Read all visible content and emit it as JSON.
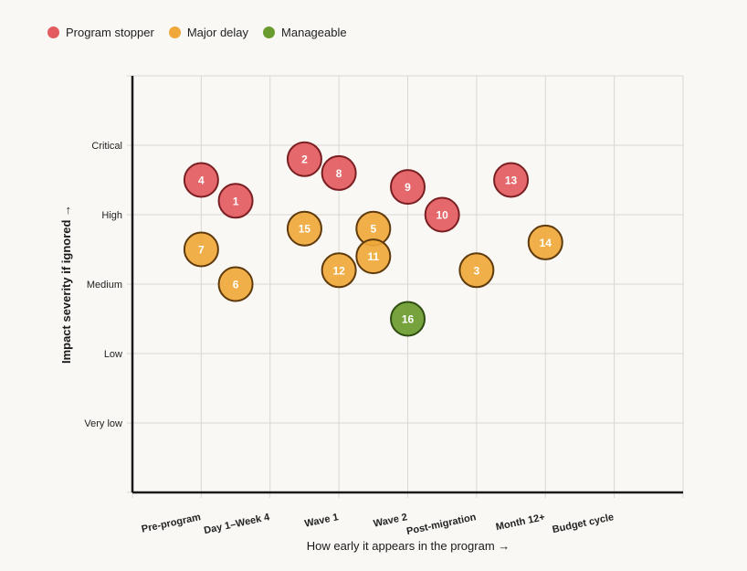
{
  "legend": [
    {
      "key": "stopper",
      "label": "Program stopper",
      "color": "#e35b5f"
    },
    {
      "key": "major",
      "label": "Major delay",
      "color": "#f0a83a"
    },
    {
      "key": "manageable",
      "label": "Manageable",
      "color": "#6a9b2e"
    }
  ],
  "chart_data": {
    "type": "scatter",
    "title": "",
    "xlabel": "How early it appears in the program →",
    "ylabel": "Impact severity if ignored →",
    "x_categories": [
      "Pre-program",
      "Day 1–Week 4",
      "Wave 1",
      "Wave 2",
      "Post-migration",
      "Month 12+",
      "Budget cycle"
    ],
    "y_categories": [
      "Very low",
      "Low",
      "Medium",
      "High",
      "Critical"
    ],
    "xlim": [
      -1,
      7
    ],
    "ylim": [
      0,
      6
    ],
    "grid": true,
    "legend_position": "top-left",
    "series": [
      {
        "name": "Program stopper",
        "color": "#e35b5f",
        "stroke": "#7a1f22",
        "points": [
          {
            "id": "1",
            "x": 0.5,
            "y": 4.2
          },
          {
            "id": "2",
            "x": 1.5,
            "y": 4.8
          },
          {
            "id": "4",
            "x": 0,
            "y": 4.5
          },
          {
            "id": "8",
            "x": 2,
            "y": 4.6
          },
          {
            "id": "9",
            "x": 3,
            "y": 4.4
          },
          {
            "id": "10",
            "x": 3.5,
            "y": 4.0
          },
          {
            "id": "13",
            "x": 4.5,
            "y": 4.5
          }
        ]
      },
      {
        "name": "Major delay",
        "color": "#f0a83a",
        "stroke": "#5e3a0c",
        "points": [
          {
            "id": "3",
            "x": 4,
            "y": 3.2
          },
          {
            "id": "5",
            "x": 2.5,
            "y": 3.8
          },
          {
            "id": "6",
            "x": 0.5,
            "y": 3.0
          },
          {
            "id": "7",
            "x": 0,
            "y": 3.5
          },
          {
            "id": "11",
            "x": 2.5,
            "y": 3.4
          },
          {
            "id": "12",
            "x": 2,
            "y": 3.2
          },
          {
            "id": "14",
            "x": 5,
            "y": 3.6
          },
          {
            "id": "15",
            "x": 1.5,
            "y": 3.8
          }
        ]
      },
      {
        "name": "Manageable",
        "color": "#6a9b2e",
        "stroke": "#2f4d12",
        "points": [
          {
            "id": "16",
            "x": 3,
            "y": 2.5
          }
        ]
      }
    ]
  }
}
